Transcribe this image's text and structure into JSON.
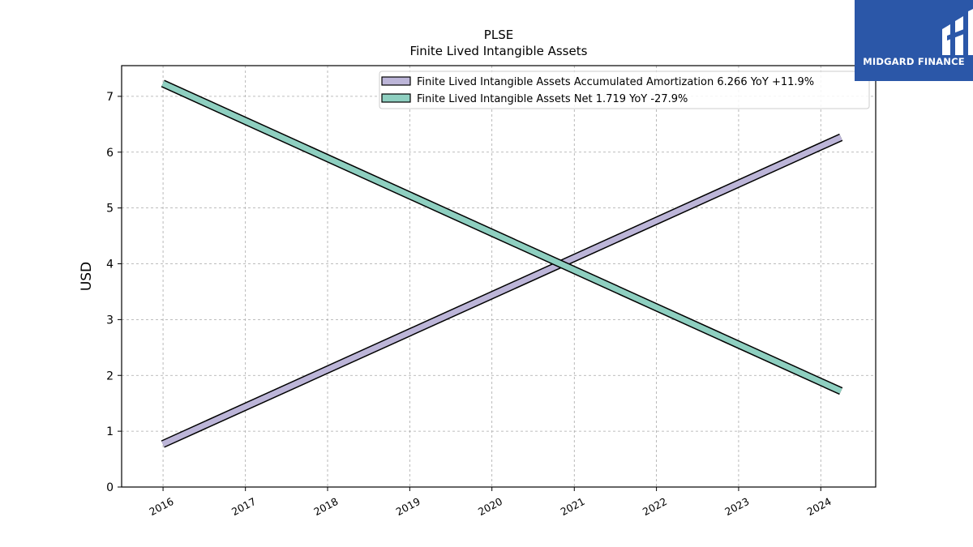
{
  "brand": {
    "name": "MIDGARD FINANCE",
    "bg_color": "#2b57a8"
  },
  "chart_data": {
    "type": "line",
    "title": "PLSE",
    "subtitle": "Finite Lived Intangible Assets",
    "ylabel": "USD",
    "xlabel": "",
    "x_ticks": [
      "2016",
      "2017",
      "2018",
      "2019",
      "2020",
      "2021",
      "2022",
      "2023",
      "2024"
    ],
    "y_ticks": [
      0,
      1,
      2,
      3,
      4,
      5,
      6,
      7
    ],
    "xlim": [
      "2015-07-01",
      "2024-09-01"
    ],
    "ylim": [
      0,
      7.55
    ],
    "grid": true,
    "legend_position": "top-right",
    "series": [
      {
        "name": "Finite Lived Intangible Assets Accumulated Amortization",
        "legend": "Finite Lived Intangible Assets Accumulated Amortization  6.266 YoY +11.9%",
        "color": "#bcb5d8",
        "points": [
          [
            "2015-12-31",
            0.77
          ],
          [
            "2024-03-31",
            6.266
          ]
        ]
      },
      {
        "name": "Finite Lived Intangible Assets Net",
        "legend": "Finite Lived Intangible Assets Net  1.719 YoY -27.9%",
        "color": "#8ecfc0",
        "points": [
          [
            "2015-12-31",
            7.23
          ],
          [
            "2024-03-31",
            1.719
          ]
        ]
      }
    ]
  }
}
